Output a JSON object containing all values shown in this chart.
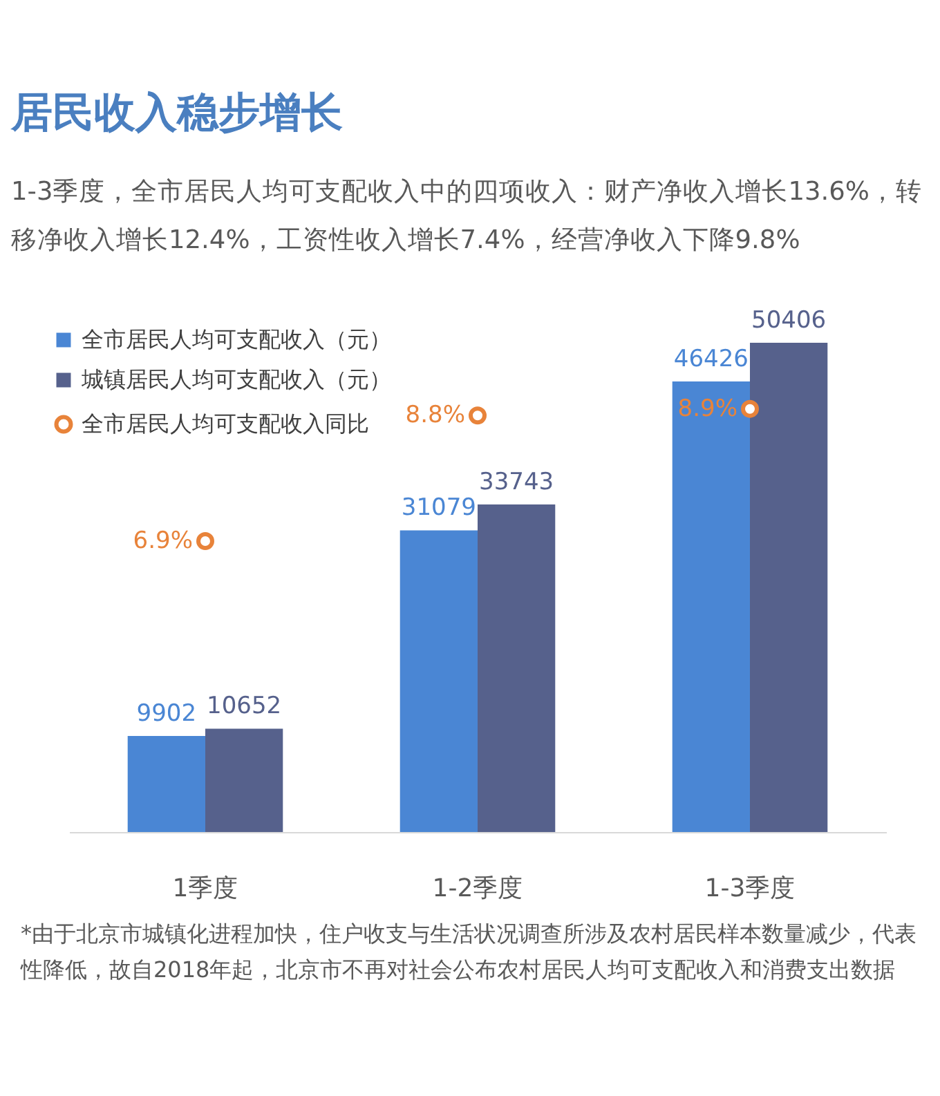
{
  "chart_data": {
    "type": "bar",
    "title": "居民收入稳步增长",
    "subtitle": "1-3季度，全市居民人均可支配收入中的四项收入：财产净收入增长13.6%，转移净收入增长12.4%，工资性收入增长7.4%，经营净收入下降9.8%",
    "categories": [
      "1季度",
      "1-2季度",
      "1-3季度"
    ],
    "series": [
      {
        "name": "全市居民人均可支配收入（元）",
        "color": "#4a86d4",
        "values": [
          9902,
          31079,
          46426
        ]
      },
      {
        "name": "城镇居民人均可支配收入（元）",
        "color": "#56618c",
        "values": [
          10652,
          33743,
          50406
        ]
      },
      {
        "name": "全市居民人均可支配收入同比",
        "color": "#e8833a",
        "type": "scatter",
        "axis": "y2",
        "marker": "circle",
        "values": [
          6.9,
          8.8,
          8.9
        ],
        "value_labels": [
          "6.9%",
          "8.8%",
          "8.9%"
        ]
      }
    ],
    "ylim": [
      0,
      50406
    ],
    "y2lim": [
      2.5,
      9.9
    ],
    "data_labels": true,
    "tick_labels": "x",
    "legend": "top left",
    "grid": false,
    "annotations": [
      "*由于北京市城镇化进程加快，住户收支与生活状况调查所涉及农村居民样本数量减少，代表性降低，故自2018年起，北京市不再对社会公布农村居民人均可支配收入和消费支出数据"
    ]
  }
}
